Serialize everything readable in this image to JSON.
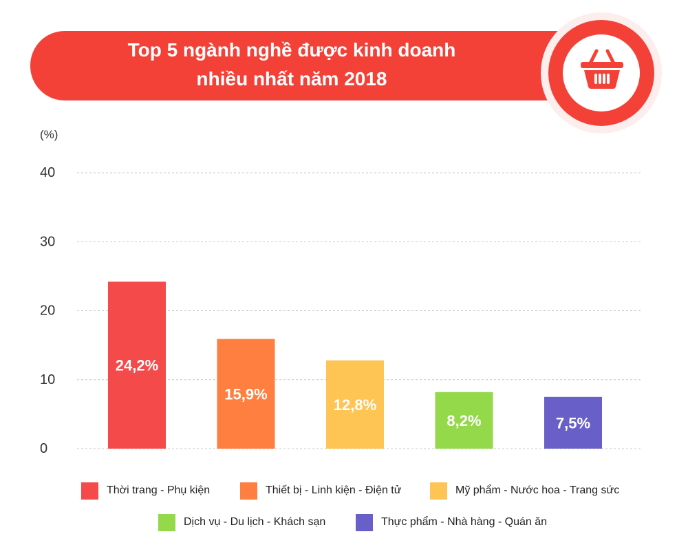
{
  "title": "Top 5 ngành nghề được kinh doanh\nnhiều nhất năm 2018",
  "icon": "shopping-basket-icon",
  "chart_data": {
    "type": "bar",
    "categories": [
      "Thời trang - Phụ kiện",
      "Thiết bị - Linh kiện - Điện tử",
      "Mỹ phẩm - Nước hoa - Trang sức",
      "Dịch vụ - Du lịch - Khách sạn",
      "Thực phẩm - Nhà hàng - Quán ăn"
    ],
    "values": [
      24.2,
      15.9,
      12.8,
      8.2,
      7.5
    ],
    "value_labels": [
      "24,2%",
      "15,9%",
      "12,8%",
      "8,2%",
      "7,5%"
    ],
    "colors": [
      "#f44a4a",
      "#fe7f40",
      "#fec555",
      "#94d94a",
      "#6860c8"
    ],
    "ylabel": "(%)",
    "ylim": [
      0,
      40
    ],
    "yticks": [
      0,
      10,
      20,
      30,
      40
    ],
    "ytick_labels": [
      "0",
      "10",
      "20",
      "30",
      "40"
    ],
    "grid": true,
    "legend_position": "bottom"
  }
}
